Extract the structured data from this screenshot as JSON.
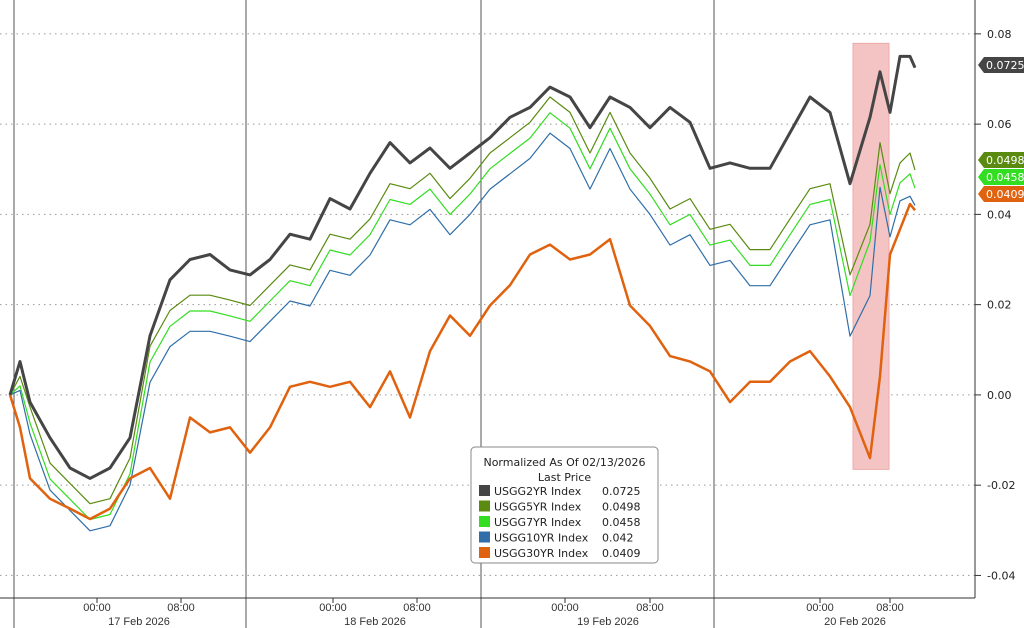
{
  "chart_data": {
    "type": "line",
    "title": "",
    "xlabel": "",
    "ylabel": "",
    "ylim": [
      -0.045,
      0.0875
    ],
    "xlim": [
      -0.5,
      48.25
    ],
    "grid": "horizontal-dotted",
    "y_ticks": [
      0.08,
      0.06,
      0.04,
      0.02,
      0.0,
      -0.02,
      -0.04
    ],
    "y_tick_labels": [
      "0.08",
      "0.06",
      "0.04",
      "0.02",
      "0.00",
      "-0.02",
      "-0.04"
    ],
    "day_separators": [
      0.2,
      11.8,
      23.55,
      35.2
    ],
    "x_ticks": [
      {
        "x": 4.35,
        "label": "00:00"
      },
      {
        "x": 8.55,
        "label": "08:00"
      },
      {
        "x": 16.15,
        "label": "00:00"
      },
      {
        "x": 20.35,
        "label": "08:00"
      },
      {
        "x": 27.75,
        "label": "00:00"
      },
      {
        "x": 32,
        "label": "08:00"
      },
      {
        "x": 40.5,
        "label": "00:00"
      },
      {
        "x": 44,
        "label": "08:00"
      }
    ],
    "day_labels": [
      {
        "x": 6.45,
        "label": "17 Feb 2026"
      },
      {
        "x": 18.25,
        "label": "18 Feb 2026"
      },
      {
        "x": 29.9,
        "label": "19 Feb 2026"
      },
      {
        "x": 42.25,
        "label": "20 Feb 2026"
      }
    ],
    "highlight": {
      "x": [
        42.15,
        43.95
      ],
      "y": [
        -0.0165,
        0.0779
      ],
      "color": "#f4c4c4"
    },
    "legend": {
      "title": "Normalized As Of 02/13/2026",
      "subtitle": "Last Price",
      "placement": "bottom-center"
    },
    "x": [
      0,
      0.5,
      1,
      2,
      3,
      4,
      5,
      6,
      7,
      8,
      9,
      10,
      11,
      12,
      13,
      14,
      15,
      16,
      17,
      18,
      19,
      20,
      21,
      22,
      23,
      24,
      25,
      26,
      27,
      28,
      29,
      30,
      31,
      32,
      33,
      34,
      35,
      36,
      37,
      38,
      39,
      40,
      41,
      42,
      43,
      43.5,
      44,
      44.5,
      45,
      45.25
    ],
    "series": [
      {
        "name": "USGG2YR Index",
        "last": "0.0725",
        "color": "#454545",
        "width": 3,
        "values": [
          0,
          0.0074,
          -0.0016,
          -0.0095,
          -0.0162,
          -0.0185,
          -0.0162,
          -0.0095,
          0.0131,
          0.0255,
          0.03,
          0.0311,
          0.0277,
          0.0266,
          0.03,
          0.0356,
          0.0345,
          0.0435,
          0.0412,
          0.0491,
          0.0559,
          0.0514,
          0.0547,
          0.0502,
          0.0536,
          0.057,
          0.0615,
          0.0637,
          0.0682,
          0.066,
          0.0592,
          0.066,
          0.0637,
          0.0592,
          0.0637,
          0.0604,
          0.0502,
          0.0514,
          0.0502,
          0.0502,
          0.0581,
          0.066,
          0.0626,
          0.0468,
          0.0615,
          0.0716,
          0.0626,
          0.075,
          0.075,
          0.0725
        ]
      },
      {
        "name": "USGG5YR Index",
        "last": "0.0498",
        "color": "#5a8a10",
        "width": 1.2,
        "values": [
          0,
          0.0041,
          -0.0027,
          -0.0151,
          -0.0196,
          -0.0241,
          -0.023,
          -0.014,
          0.0108,
          0.0187,
          0.0221,
          0.0221,
          0.021,
          0.0198,
          0.0243,
          0.0288,
          0.0277,
          0.0356,
          0.0345,
          0.039,
          0.0468,
          0.0457,
          0.0491,
          0.0435,
          0.048,
          0.0536,
          0.057,
          0.0604,
          0.066,
          0.0626,
          0.0536,
          0.0626,
          0.0536,
          0.048,
          0.0412,
          0.0435,
          0.0367,
          0.0378,
          0.0322,
          0.0322,
          0.039,
          0.0457,
          0.0468,
          0.0266,
          0.0378,
          0.0559,
          0.0446,
          0.0514,
          0.0536,
          0.0498
        ]
      },
      {
        "name": "USGG7YR Index",
        "last": "0.0458",
        "color": "#33dd22",
        "width": 1.2,
        "values": [
          0,
          0.002,
          -0.0062,
          -0.0186,
          -0.0231,
          -0.0276,
          -0.0265,
          -0.0175,
          0.0073,
          0.0152,
          0.0186,
          0.0186,
          0.0175,
          0.0163,
          0.0208,
          0.0253,
          0.0242,
          0.0321,
          0.031,
          0.0355,
          0.0433,
          0.0422,
          0.0456,
          0.04,
          0.0445,
          0.0501,
          0.0535,
          0.0569,
          0.0625,
          0.0591,
          0.0501,
          0.0591,
          0.0501,
          0.0445,
          0.0377,
          0.04,
          0.0332,
          0.0343,
          0.0287,
          0.0287,
          0.0355,
          0.0422,
          0.0433,
          0.022,
          0.034,
          0.051,
          0.04,
          0.047,
          0.049,
          0.0458
        ]
      },
      {
        "name": "USGG10YR Index",
        "last": "0.042",
        "color": "#2f6ea8",
        "width": 1.2,
        "values": [
          0,
          0.001,
          -0.0087,
          -0.0211,
          -0.0256,
          -0.0301,
          -0.029,
          -0.02,
          0.0028,
          0.0107,
          0.0141,
          0.0141,
          0.013,
          0.0118,
          0.0163,
          0.0208,
          0.0197,
          0.0276,
          0.0265,
          0.031,
          0.0388,
          0.0377,
          0.0411,
          0.0355,
          0.04,
          0.0456,
          0.049,
          0.0524,
          0.058,
          0.0546,
          0.0456,
          0.0546,
          0.0456,
          0.04,
          0.0332,
          0.0355,
          0.0287,
          0.0298,
          0.0242,
          0.0242,
          0.031,
          0.0377,
          0.0388,
          0.013,
          0.022,
          0.046,
          0.035,
          0.043,
          0.044,
          0.042
        ]
      },
      {
        "name": "USGG30YR Index",
        "last": "0.0409",
        "color": "#e0620e",
        "width": 2.5,
        "values": [
          0,
          -0.0072,
          -0.0185,
          -0.023,
          -0.0252,
          -0.0275,
          -0.0252,
          -0.0185,
          -0.0162,
          -0.023,
          -0.005,
          -0.0083,
          -0.0072,
          -0.0128,
          -0.0072,
          0.0018,
          0.0029,
          0.0018,
          0.0029,
          -0.0027,
          0.0052,
          -0.005,
          0.0097,
          0.0176,
          0.0131,
          0.0198,
          0.0243,
          0.0311,
          0.0333,
          0.03,
          0.0311,
          0.0345,
          0.0198,
          0.0153,
          0.0086,
          0.0074,
          0.0052,
          -0.0016,
          0.0029,
          0.0029,
          0.0074,
          0.0097,
          0.0041,
          -0.0027,
          -0.014,
          0.0041,
          0.0311,
          0.0367,
          0.0423,
          0.0409
        ]
      }
    ]
  }
}
